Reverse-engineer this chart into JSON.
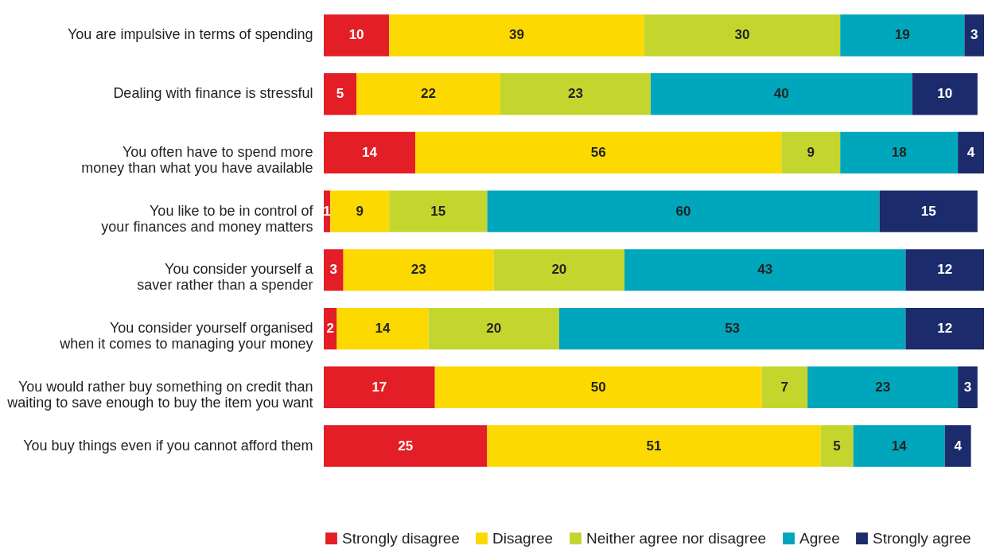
{
  "chart_data": {
    "type": "bar",
    "orientation": "horizontal",
    "stacked": true,
    "data_labels": true,
    "legend": "bottom right",
    "categories": [
      "You are impulsive in terms of spending",
      "Dealing with finance is stressful",
      "You often have to spend more money than what you have available",
      "You like to be in control of your finances and money matters",
      "You consider yourself a saver rather than a spender",
      "You consider yourself organised when it comes to managing your money",
      "You would rather buy something on credit than waiting to save enough to buy the item you want",
      "You buy things even if you cannot afford them"
    ],
    "series": [
      {
        "name": "Strongly disagree",
        "color": "#e31e26",
        "values": [
          10,
          5,
          14,
          1,
          3,
          2,
          17,
          25
        ]
      },
      {
        "name": "Disagree",
        "color": "#fcd900",
        "values": [
          39,
          22,
          56,
          9,
          23,
          14,
          50,
          51
        ]
      },
      {
        "name": "Neither agree nor disagree",
        "color": "#c4d62e",
        "values": [
          30,
          23,
          9,
          15,
          20,
          20,
          7,
          5
        ]
      },
      {
        "name": "Agree",
        "color": "#00a6bb",
        "values": [
          19,
          40,
          18,
          60,
          43,
          53,
          23,
          14
        ]
      },
      {
        "name": "Strongly agree",
        "color": "#1b2b6b",
        "values": [
          3,
          10,
          4,
          15,
          12,
          12,
          3,
          4
        ]
      }
    ]
  }
}
